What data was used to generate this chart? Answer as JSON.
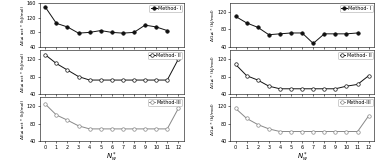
{
  "x": [
    0,
    1,
    2,
    3,
    4,
    5,
    6,
    7,
    8,
    9,
    10,
    11,
    12
  ],
  "left_method1": [
    150,
    105,
    95,
    78,
    80,
    85,
    80,
    78,
    80,
    100,
    95,
    85,
    null
  ],
  "left_method2": [
    130,
    110,
    95,
    80,
    72,
    72,
    72,
    72,
    72,
    72,
    72,
    72,
    120
  ],
  "left_method3": [
    125,
    100,
    88,
    75,
    68,
    68,
    68,
    68,
    68,
    68,
    68,
    68,
    115
  ],
  "right_method1": [
    110,
    95,
    85,
    68,
    70,
    72,
    72,
    48,
    70,
    70,
    70,
    72,
    null
  ],
  "right_method2": [
    108,
    82,
    72,
    58,
    52,
    52,
    52,
    52,
    52,
    52,
    58,
    62,
    82
  ],
  "right_method3": [
    115,
    92,
    78,
    68,
    62,
    62,
    62,
    62,
    62,
    62,
    62,
    62,
    98
  ],
  "left_ylim": [
    40,
    160
  ],
  "right_ylim": [
    40,
    140
  ],
  "left_yticks_top": [
    40,
    80,
    120,
    160
  ],
  "left_yticks_mid": [
    40,
    80,
    120
  ],
  "left_yticks_bot": [
    40,
    80,
    120
  ],
  "right_yticks_top": [
    40,
    80,
    120
  ],
  "right_yticks_mid": [
    40,
    80,
    120
  ],
  "right_yticks_bot": [
    40,
    80,
    120
  ],
  "ylabel_left": "ΔE≠ act * (kJ/mol)",
  "ylabel_right": "ΔG≠ * (kJ/mol)",
  "xlabel": "N",
  "xlabel_sub": "w",
  "color_dark": "#111111",
  "color_light": "#888888",
  "bg_color": "#ffffff"
}
